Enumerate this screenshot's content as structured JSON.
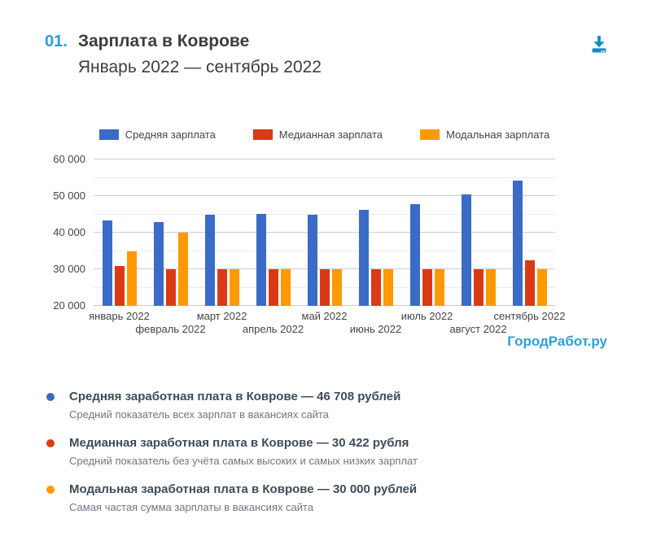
{
  "header": {
    "index": "01.",
    "title": "Зарплата в Коврове",
    "subtitle": "Январь 2022 — сентябрь 2022"
  },
  "watermark": "ГородРабот.ру",
  "colors": {
    "average": "#3a6bc6",
    "median": "#d93a15",
    "modal": "#ff9900",
    "accent_blue": "#2b9ed9",
    "download_icon": "#1487c8",
    "watermark_blue": "#2f9fd6",
    "axis_text": "#444444",
    "grid_major": "#cccccc",
    "grid_minor": "#ececec"
  },
  "chart_data": {
    "type": "bar",
    "title": "Зарплата в Коврове",
    "subtitle": "Январь 2022 — сентябрь 2022",
    "categories": [
      "январь 2022",
      "февраль 2022",
      "март 2022",
      "апрель 2022",
      "май 2022",
      "июнь 2022",
      "июль 2022",
      "август 2022",
      "сентябрь 2022"
    ],
    "series": [
      {
        "name": "Средняя зарплата",
        "color": "#3a6bc6",
        "values": [
          43300,
          42800,
          44800,
          45200,
          44900,
          46200,
          47700,
          50400,
          54300
        ]
      },
      {
        "name": "Медианная зарплата",
        "color": "#d93a15",
        "values": [
          30800,
          30000,
          30000,
          30000,
          30000,
          30000,
          30000,
          30000,
          32400
        ]
      },
      {
        "name": "Модальная зарплата",
        "color": "#ff9900",
        "values": [
          35000,
          40000,
          30000,
          30000,
          30000,
          30000,
          30000,
          30000,
          30000
        ]
      }
    ],
    "xlabel": "",
    "ylabel": "",
    "ylim": [
      20000,
      60000
    ],
    "gridline_step": 5000,
    "ytick_step": 10000,
    "yticks": [
      {
        "value": 20000,
        "label": "20 000"
      },
      {
        "value": 30000,
        "label": "30 000"
      },
      {
        "value": 40000,
        "label": "40 000"
      },
      {
        "value": 50000,
        "label": "50 000"
      },
      {
        "value": 60000,
        "label": "60 000"
      }
    ],
    "legend_position": "top",
    "grid": true
  },
  "summary": [
    {
      "color": "#3a6bc6",
      "title": "Средняя заработная плата в Коврове — 46 708 рублей",
      "description": "Средний показатель всех зарплат в вакансиях сайта"
    },
    {
      "color": "#d93a15",
      "title": "Медианная заработная плата в Коврове — 30 422 рубля",
      "description": "Средний показатель без учёта самых высоких и самых низких зарплат"
    },
    {
      "color": "#ff9900",
      "title": "Модальная заработная плата в Коврове — 30 000 рублей",
      "description": "Самая частая сумма зарплаты в вакансиях сайта"
    }
  ]
}
